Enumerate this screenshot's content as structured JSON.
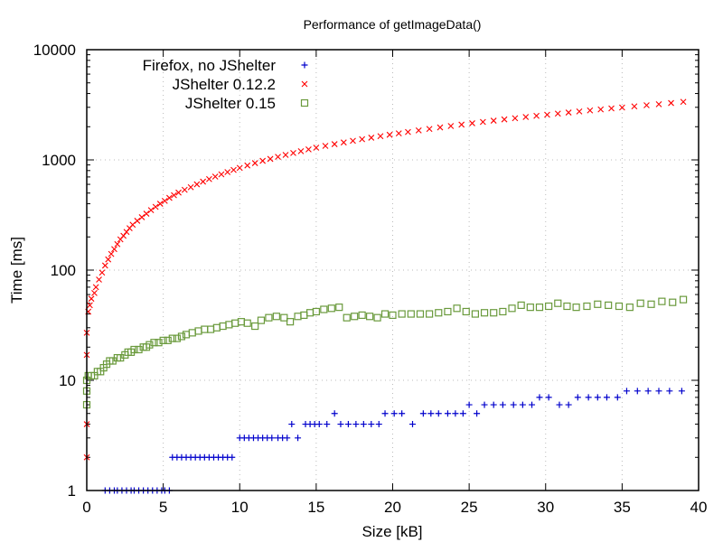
{
  "chart_data": {
    "type": "scatter",
    "title": "Performance of getImageData()",
    "xlabel": "Size [kB]",
    "ylabel": "Time [ms]",
    "xlim": [
      0,
      40
    ],
    "ylim": [
      1,
      10000
    ],
    "yscale": "log",
    "x_ticks": [
      0,
      5,
      10,
      15,
      20,
      25,
      30,
      35,
      40
    ],
    "y_ticks": [
      1,
      10,
      100,
      1000,
      10000
    ],
    "grid": true,
    "legend_position": "top-left",
    "series": [
      {
        "name": "Firefox, no JShelter",
        "marker": "plus",
        "color": "#0000cc",
        "points": [
          [
            1.2,
            1
          ],
          [
            1.5,
            1
          ],
          [
            1.8,
            1
          ],
          [
            2.0,
            1
          ],
          [
            2.3,
            1
          ],
          [
            2.6,
            1
          ],
          [
            2.9,
            1
          ],
          [
            3.1,
            1
          ],
          [
            3.4,
            1
          ],
          [
            3.7,
            1
          ],
          [
            4.0,
            1
          ],
          [
            4.3,
            1
          ],
          [
            4.6,
            1
          ],
          [
            4.9,
            1
          ],
          [
            5.1,
            1
          ],
          [
            5.4,
            1
          ],
          [
            5.6,
            2
          ],
          [
            5.9,
            2
          ],
          [
            6.2,
            2
          ],
          [
            6.5,
            2
          ],
          [
            6.8,
            2
          ],
          [
            7.1,
            2
          ],
          [
            7.4,
            2
          ],
          [
            7.7,
            2
          ],
          [
            8.0,
            2
          ],
          [
            8.3,
            2
          ],
          [
            8.6,
            2
          ],
          [
            8.9,
            2
          ],
          [
            9.2,
            2
          ],
          [
            9.5,
            2
          ],
          [
            10.0,
            3
          ],
          [
            10.3,
            3
          ],
          [
            10.6,
            3
          ],
          [
            10.9,
            3
          ],
          [
            11.2,
            3
          ],
          [
            11.5,
            3
          ],
          [
            11.8,
            3
          ],
          [
            12.1,
            3
          ],
          [
            12.5,
            3
          ],
          [
            12.8,
            3
          ],
          [
            13.1,
            3
          ],
          [
            13.8,
            3
          ],
          [
            13.4,
            4
          ],
          [
            14.3,
            4
          ],
          [
            14.6,
            4
          ],
          [
            14.9,
            4
          ],
          [
            15.2,
            4
          ],
          [
            15.7,
            4
          ],
          [
            16.6,
            4
          ],
          [
            17.1,
            4
          ],
          [
            17.6,
            4
          ],
          [
            18.1,
            4
          ],
          [
            18.6,
            4
          ],
          [
            19.1,
            4
          ],
          [
            21.3,
            4
          ],
          [
            16.2,
            5
          ],
          [
            19.5,
            5
          ],
          [
            20.1,
            5
          ],
          [
            20.6,
            5
          ],
          [
            22.0,
            5
          ],
          [
            22.5,
            5
          ],
          [
            23.0,
            5
          ],
          [
            23.6,
            5
          ],
          [
            24.1,
            5
          ],
          [
            24.6,
            5
          ],
          [
            25.5,
            5
          ],
          [
            25.0,
            6
          ],
          [
            26.0,
            6
          ],
          [
            26.6,
            6
          ],
          [
            27.2,
            6
          ],
          [
            27.9,
            6
          ],
          [
            28.5,
            6
          ],
          [
            29.1,
            6
          ],
          [
            30.9,
            6
          ],
          [
            31.5,
            6
          ],
          [
            29.6,
            7
          ],
          [
            30.2,
            7
          ],
          [
            32.1,
            7
          ],
          [
            32.8,
            7
          ],
          [
            33.4,
            7
          ],
          [
            34.0,
            7
          ],
          [
            34.7,
            7
          ],
          [
            35.3,
            8
          ],
          [
            36.0,
            8
          ],
          [
            36.7,
            8
          ],
          [
            37.4,
            8
          ],
          [
            38.1,
            8
          ],
          [
            38.9,
            8
          ]
        ]
      },
      {
        "name": "JShelter 0.12.2",
        "marker": "cross",
        "color": "#ff0000",
        "points": [
          [
            0,
            2
          ],
          [
            0,
            4
          ],
          [
            0,
            17
          ],
          [
            0,
            27
          ],
          [
            0.1,
            42
          ],
          [
            0.2,
            48
          ],
          [
            0.3,
            55
          ],
          [
            0.5,
            62
          ],
          [
            0.6,
            70
          ],
          [
            0.8,
            82
          ],
          [
            1.0,
            95
          ],
          [
            1.2,
            110
          ],
          [
            1.4,
            125
          ],
          [
            1.6,
            140
          ],
          [
            1.8,
            155
          ],
          [
            2.0,
            172
          ],
          [
            2.2,
            190
          ],
          [
            2.4,
            205
          ],
          [
            2.6,
            222
          ],
          [
            2.8,
            240
          ],
          [
            3.0,
            258
          ],
          [
            3.3,
            280
          ],
          [
            3.6,
            302
          ],
          [
            3.9,
            325
          ],
          [
            4.2,
            350
          ],
          [
            4.5,
            375
          ],
          [
            4.8,
            400
          ],
          [
            5.1,
            425
          ],
          [
            5.4,
            452
          ],
          [
            5.7,
            478
          ],
          [
            6.0,
            505
          ],
          [
            6.4,
            535
          ],
          [
            6.8,
            565
          ],
          [
            7.2,
            600
          ],
          [
            7.6,
            635
          ],
          [
            8.0,
            670
          ],
          [
            8.4,
            705
          ],
          [
            8.8,
            740
          ],
          [
            9.2,
            775
          ],
          [
            9.6,
            810
          ],
          [
            10.0,
            845
          ],
          [
            10.5,
            890
          ],
          [
            11.0,
            935
          ],
          [
            11.5,
            980
          ],
          [
            12.0,
            1020
          ],
          [
            12.5,
            1065
          ],
          [
            13.0,
            1110
          ],
          [
            13.5,
            1155
          ],
          [
            14.0,
            1200
          ],
          [
            14.5,
            1245
          ],
          [
            15.0,
            1290
          ],
          [
            15.6,
            1340
          ],
          [
            16.2,
            1390
          ],
          [
            16.8,
            1440
          ],
          [
            17.4,
            1490
          ],
          [
            18.0,
            1540
          ],
          [
            18.6,
            1590
          ],
          [
            19.2,
            1640
          ],
          [
            19.8,
            1690
          ],
          [
            20.4,
            1740
          ],
          [
            21.0,
            1790
          ],
          [
            21.7,
            1850
          ],
          [
            22.4,
            1910
          ],
          [
            23.1,
            1970
          ],
          [
            23.8,
            2030
          ],
          [
            24.5,
            2090
          ],
          [
            25.2,
            2150
          ],
          [
            25.9,
            2210
          ],
          [
            26.6,
            2270
          ],
          [
            27.3,
            2330
          ],
          [
            28.0,
            2390
          ],
          [
            28.7,
            2450
          ],
          [
            29.4,
            2510
          ],
          [
            30.1,
            2570
          ],
          [
            30.8,
            2630
          ],
          [
            31.5,
            2690
          ],
          [
            32.2,
            2750
          ],
          [
            32.9,
            2810
          ],
          [
            33.6,
            2870
          ],
          [
            34.3,
            2930
          ],
          [
            35.0,
            2990
          ],
          [
            35.8,
            3060
          ],
          [
            36.6,
            3130
          ],
          [
            37.4,
            3200
          ],
          [
            38.2,
            3280
          ],
          [
            39.0,
            3360
          ]
        ]
      },
      {
        "name": "JShelter 0.15",
        "marker": "square",
        "color": "#6a9a3c",
        "points": [
          [
            0,
            6
          ],
          [
            0,
            8
          ],
          [
            0,
            10
          ],
          [
            0.1,
            11
          ],
          [
            0.3,
            11
          ],
          [
            0.5,
            11
          ],
          [
            0.7,
            12
          ],
          [
            0.9,
            12
          ],
          [
            1.1,
            13
          ],
          [
            1.3,
            14
          ],
          [
            1.5,
            15
          ],
          [
            1.7,
            15
          ],
          [
            2.0,
            16
          ],
          [
            2.2,
            16
          ],
          [
            2.5,
            17
          ],
          [
            2.7,
            18
          ],
          [
            2.9,
            18
          ],
          [
            3.1,
            19
          ],
          [
            3.4,
            19
          ],
          [
            3.7,
            20
          ],
          [
            3.9,
            20
          ],
          [
            4.1,
            21
          ],
          [
            4.4,
            22
          ],
          [
            4.7,
            22
          ],
          [
            5.0,
            23
          ],
          [
            5.3,
            23
          ],
          [
            5.6,
            24
          ],
          [
            5.9,
            24
          ],
          [
            6.2,
            25
          ],
          [
            6.5,
            26
          ],
          [
            6.9,
            27
          ],
          [
            7.3,
            28
          ],
          [
            7.7,
            29
          ],
          [
            8.1,
            29
          ],
          [
            8.5,
            30
          ],
          [
            8.9,
            31
          ],
          [
            9.3,
            32
          ],
          [
            9.7,
            33
          ],
          [
            10.1,
            34
          ],
          [
            10.5,
            33
          ],
          [
            11.0,
            31
          ],
          [
            11.4,
            35
          ],
          [
            11.9,
            37
          ],
          [
            12.4,
            38
          ],
          [
            12.9,
            37
          ],
          [
            13.3,
            34
          ],
          [
            13.8,
            38
          ],
          [
            14.2,
            39
          ],
          [
            14.6,
            41
          ],
          [
            15.0,
            42
          ],
          [
            15.5,
            44
          ],
          [
            16.0,
            45
          ],
          [
            16.5,
            46
          ],
          [
            17.0,
            37
          ],
          [
            17.5,
            38
          ],
          [
            18.0,
            39
          ],
          [
            18.5,
            38
          ],
          [
            19.0,
            37
          ],
          [
            19.5,
            40
          ],
          [
            20.0,
            39
          ],
          [
            20.6,
            40
          ],
          [
            21.2,
            40
          ],
          [
            21.8,
            40
          ],
          [
            22.4,
            40
          ],
          [
            23.0,
            41
          ],
          [
            23.6,
            42
          ],
          [
            24.2,
            45
          ],
          [
            24.8,
            42
          ],
          [
            25.4,
            40
          ],
          [
            26.0,
            41
          ],
          [
            26.6,
            41
          ],
          [
            27.2,
            42
          ],
          [
            27.8,
            45
          ],
          [
            28.4,
            48
          ],
          [
            29.0,
            46
          ],
          [
            29.6,
            46
          ],
          [
            30.2,
            47
          ],
          [
            30.8,
            50
          ],
          [
            31.4,
            47
          ],
          [
            32.0,
            46
          ],
          [
            32.7,
            47
          ],
          [
            33.4,
            49
          ],
          [
            34.1,
            48
          ],
          [
            34.8,
            47
          ],
          [
            35.5,
            46
          ],
          [
            36.2,
            50
          ],
          [
            36.9,
            49
          ],
          [
            37.6,
            52
          ],
          [
            38.3,
            51
          ],
          [
            39.0,
            54
          ]
        ]
      }
    ]
  }
}
